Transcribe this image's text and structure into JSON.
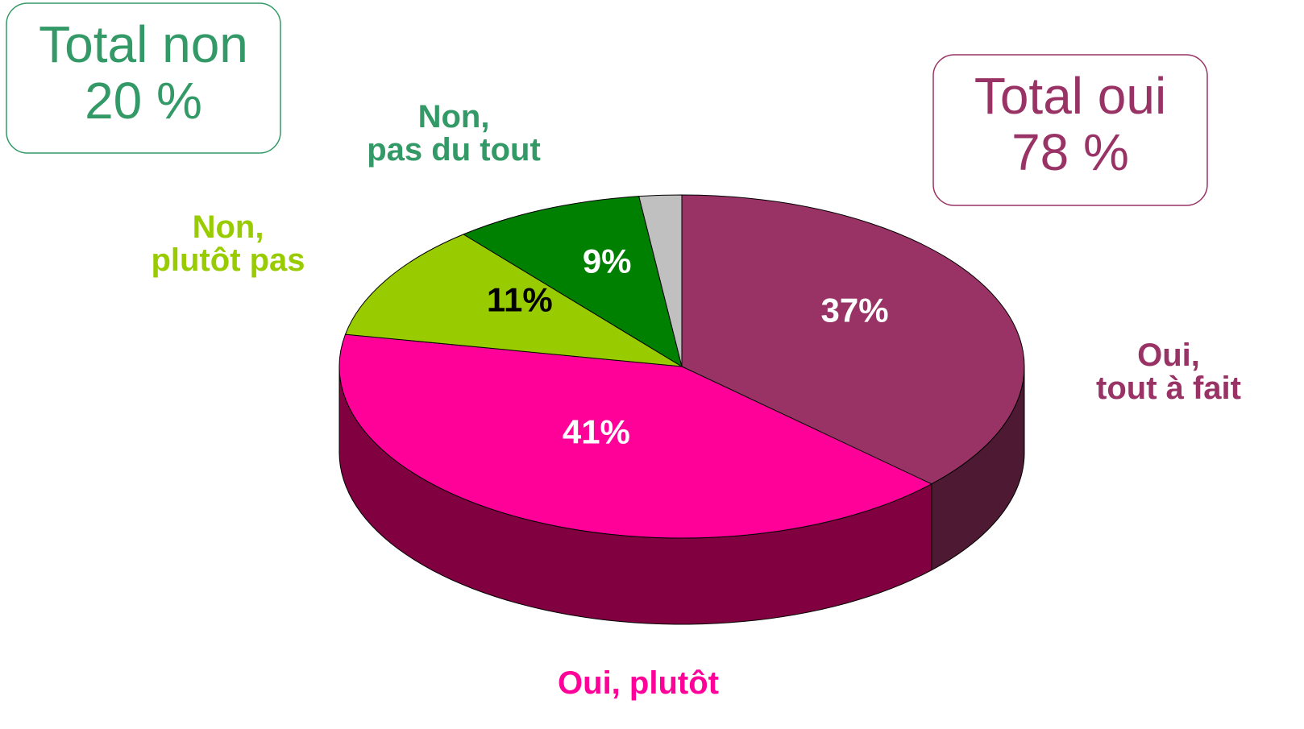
{
  "chart_data": {
    "type": "pie3d",
    "categories": [
      "Oui,\ntout à fait",
      "Oui, plutôt",
      "Non,\nplutôt pas",
      "Non,\npas du tout",
      null
    ],
    "values": [
      37,
      41,
      11,
      9,
      2
    ],
    "value_labels": [
      "37%",
      "41%",
      "11%",
      "9%",
      null
    ],
    "colors": [
      "#993366",
      "#ff0099",
      "#99cc00",
      "#008000",
      "#c0c0c0"
    ],
    "value_label_colors": [
      "#ffffff",
      "#ffffff",
      "#000000",
      "#ffffff",
      "#000000"
    ],
    "totals": [
      {
        "title": "Total non",
        "value": "20 %"
      },
      {
        "title": "Total oui",
        "value": "78 %"
      }
    ]
  }
}
